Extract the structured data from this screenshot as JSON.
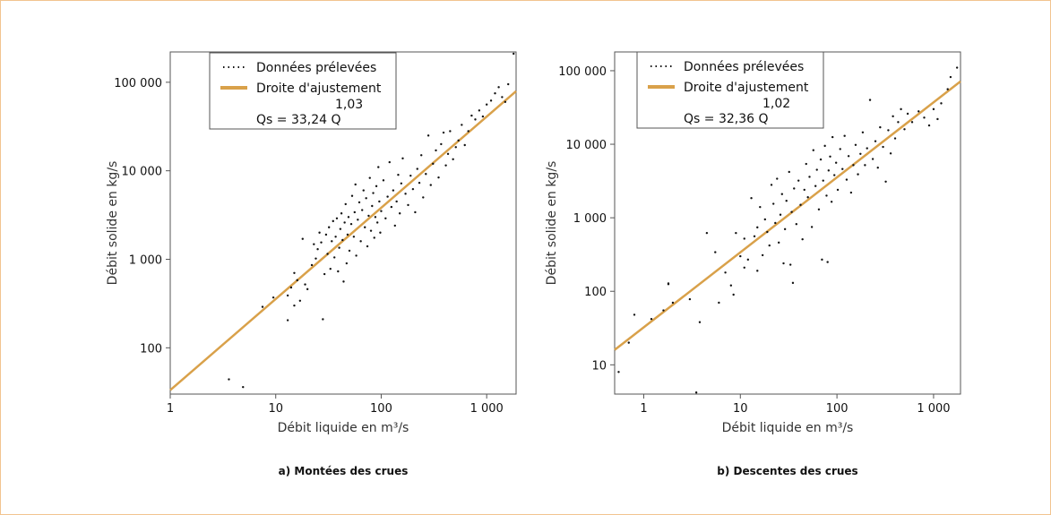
{
  "chart_data": [
    {
      "type": "scatter",
      "caption": "a) Montées des crues",
      "xlabel": "Débit liquide en m³/s",
      "ylabel": "Débit solide en kg/s",
      "xscale": "log",
      "yscale": "log",
      "xlim": [
        1,
        1900
      ],
      "ylim": [
        30,
        220000
      ],
      "xticks": [
        {
          "value": 1,
          "label": "1"
        },
        {
          "value": 10,
          "label": "10"
        },
        {
          "value": 100,
          "label": "100"
        },
        {
          "value": 1000,
          "label": "1 000"
        }
      ],
      "yticks": [
        {
          "value": 100,
          "label": "100"
        },
        {
          "value": 1000,
          "label": "1 000"
        },
        {
          "value": 10000,
          "label": "10 000"
        },
        {
          "value": 100000,
          "label": "100 000"
        }
      ],
      "legend": {
        "position": "top-center",
        "points_label": "Données prélevées",
        "fit_label": "Droite d'ajustement",
        "equation": "Qs = 33,24 Q",
        "exponent": "1,03"
      },
      "fit": {
        "coefficient": 33.24,
        "exponent": 1.03,
        "color": "#d9a14a"
      },
      "series": [
        {
          "name": "Données prélevées",
          "points": [
            [
              3.6,
              44
            ],
            [
              4.9,
              36
            ],
            [
              7.5,
              290
            ],
            [
              9.5,
              370
            ],
            [
              13,
              205
            ],
            [
              13,
              390
            ],
            [
              14,
              480
            ],
            [
              15,
              300
            ],
            [
              15,
              700
            ],
            [
              16,
              580
            ],
            [
              17,
              340
            ],
            [
              18,
              1700
            ],
            [
              19,
              520
            ],
            [
              20,
              460
            ],
            [
              22,
              860
            ],
            [
              23,
              1480
            ],
            [
              24,
              1020
            ],
            [
              25,
              1300
            ],
            [
              26,
              2000
            ],
            [
              27,
              1550
            ],
            [
              28,
              210
            ],
            [
              29,
              680
            ],
            [
              30,
              1900
            ],
            [
              31,
              1150
            ],
            [
              32,
              2300
            ],
            [
              33,
              780
            ],
            [
              34,
              1600
            ],
            [
              35,
              2700
            ],
            [
              36,
              1050
            ],
            [
              37,
              1800
            ],
            [
              38,
              2900
            ],
            [
              39,
              730
            ],
            [
              40,
              1350
            ],
            [
              41,
              2200
            ],
            [
              42,
              3300
            ],
            [
              43,
              1650
            ],
            [
              44,
              560
            ],
            [
              45,
              2600
            ],
            [
              46,
              4200
            ],
            [
              47,
              900
            ],
            [
              48,
              1900
            ],
            [
              49,
              3000
            ],
            [
              50,
              1250
            ],
            [
              52,
              2500
            ],
            [
              53,
              5200
            ],
            [
              55,
              1800
            ],
            [
              56,
              3400
            ],
            [
              57,
              7000
            ],
            [
              58,
              1100
            ],
            [
              60,
              2800
            ],
            [
              62,
              4400
            ],
            [
              64,
              1600
            ],
            [
              66,
              3600
            ],
            [
              68,
              6000
            ],
            [
              70,
              2300
            ],
            [
              72,
              4900
            ],
            [
              74,
              1400
            ],
            [
              76,
              3100
            ],
            [
              78,
              8300
            ],
            [
              80,
              2100
            ],
            [
              82,
              4000
            ],
            [
              84,
              5600
            ],
            [
              86,
              1750
            ],
            [
              88,
              3000
            ],
            [
              90,
              6700
            ],
            [
              92,
              2600
            ],
            [
              94,
              11000
            ],
            [
              96,
              4500
            ],
            [
              98,
              2000
            ],
            [
              100,
              3500
            ],
            [
              105,
              7800
            ],
            [
              110,
              2900
            ],
            [
              115,
              5100
            ],
            [
              120,
              12500
            ],
            [
              125,
              3900
            ],
            [
              130,
              6000
            ],
            [
              135,
              2400
            ],
            [
              140,
              4500
            ],
            [
              145,
              9000
            ],
            [
              150,
              3300
            ],
            [
              155,
              7200
            ],
            [
              160,
              13800
            ],
            [
              170,
              5500
            ],
            [
              180,
              4100
            ],
            [
              190,
              8800
            ],
            [
              200,
              6200
            ],
            [
              210,
              3400
            ],
            [
              220,
              10500
            ],
            [
              230,
              7300
            ],
            [
              240,
              15000
            ],
            [
              250,
              5000
            ],
            [
              265,
              9200
            ],
            [
              280,
              25000
            ],
            [
              295,
              6900
            ],
            [
              310,
              12000
            ],
            [
              330,
              17000
            ],
            [
              350,
              8400
            ],
            [
              370,
              20000
            ],
            [
              390,
              27000
            ],
            [
              410,
              11500
            ],
            [
              430,
              15500
            ],
            [
              450,
              28000
            ],
            [
              480,
              13500
            ],
            [
              510,
              18500
            ],
            [
              540,
              22000
            ],
            [
              580,
              33000
            ],
            [
              620,
              19500
            ],
            [
              670,
              28000
            ],
            [
              720,
              42000
            ],
            [
              780,
              38000
            ],
            [
              850,
              48000
            ],
            [
              920,
              41000
            ],
            [
              1000,
              56000
            ],
            [
              1100,
              62000
            ],
            [
              1200,
              75000
            ],
            [
              1300,
              88000
            ],
            [
              1400,
              68000
            ],
            [
              1500,
              60000
            ],
            [
              1600,
              95000
            ],
            [
              1800,
              210000
            ]
          ]
        }
      ]
    },
    {
      "type": "scatter",
      "caption": "b) Descentes des crues",
      "xlabel": "Débit liquide en m³/s",
      "ylabel": "Débit solide en kg/s",
      "xscale": "log",
      "yscale": "log",
      "xlim": [
        0.5,
        1900
      ],
      "ylim": [
        4,
        180000
      ],
      "xticks": [
        {
          "value": 1,
          "label": "1"
        },
        {
          "value": 10,
          "label": "10"
        },
        {
          "value": 100,
          "label": "100"
        },
        {
          "value": 1000,
          "label": "1 000"
        }
      ],
      "yticks": [
        {
          "value": 10,
          "label": "10"
        },
        {
          "value": 100,
          "label": "100"
        },
        {
          "value": 1000,
          "label": "1 000"
        },
        {
          "value": 10000,
          "label": "10 000"
        },
        {
          "value": 100000,
          "label": "100 000"
        }
      ],
      "legend": {
        "position": "top-center",
        "points_label": "Données prélevées",
        "fit_label": "Droite d'ajustement",
        "equation": "Qs = 32,36 Q",
        "exponent": "1,02"
      },
      "fit": {
        "coefficient": 32.36,
        "exponent": 1.02,
        "color": "#d9a14a"
      },
      "series": [
        {
          "name": "Données prélevées",
          "points": [
            [
              0.55,
              8
            ],
            [
              0.7,
              20
            ],
            [
              0.8,
              48
            ],
            [
              1.2,
              42
            ],
            [
              1.6,
              55
            ],
            [
              1.8,
              128
            ],
            [
              1.8,
              125
            ],
            [
              2.0,
              70
            ],
            [
              3.0,
              78
            ],
            [
              3.5,
              4.2
            ],
            [
              3.8,
              38
            ],
            [
              4.5,
              620
            ],
            [
              5.5,
              340
            ],
            [
              6.0,
              70
            ],
            [
              7.0,
              180
            ],
            [
              8.0,
              120
            ],
            [
              8.5,
              90
            ],
            [
              9.0,
              620
            ],
            [
              10,
              300
            ],
            [
              11,
              210
            ],
            [
              11,
              520
            ],
            [
              12,
              270
            ],
            [
              13,
              1850
            ],
            [
              14,
              560
            ],
            [
              15,
              740
            ],
            [
              15,
              190
            ],
            [
              16,
              1400
            ],
            [
              17,
              310
            ],
            [
              18,
              950
            ],
            [
              19,
              640
            ],
            [
              20,
              420
            ],
            [
              21,
              2800
            ],
            [
              22,
              1550
            ],
            [
              23,
              850
            ],
            [
              24,
              3400
            ],
            [
              25,
              460
            ],
            [
              26,
              1100
            ],
            [
              27,
              2100
            ],
            [
              28,
              240
            ],
            [
              29,
              700
            ],
            [
              30,
              1700
            ],
            [
              32,
              4200
            ],
            [
              33,
              230
            ],
            [
              34,
              1200
            ],
            [
              35,
              130
            ],
            [
              36,
              2500
            ],
            [
              38,
              820
            ],
            [
              40,
              3200
            ],
            [
              42,
              1500
            ],
            [
              44,
              510
            ],
            [
              46,
              2400
            ],
            [
              48,
              5400
            ],
            [
              50,
              1900
            ],
            [
              52,
              3600
            ],
            [
              55,
              750
            ],
            [
              57,
              8300
            ],
            [
              60,
              2700
            ],
            [
              62,
              4500
            ],
            [
              65,
              1300
            ],
            [
              68,
              6200
            ],
            [
              70,
              270
            ],
            [
              72,
              3200
            ],
            [
              75,
              9500
            ],
            [
              78,
              2000
            ],
            [
              80,
              250
            ],
            [
              82,
              4400
            ],
            [
              85,
              6800
            ],
            [
              88,
              1650
            ],
            [
              90,
              12500
            ],
            [
              94,
              3800
            ],
            [
              98,
              5600
            ],
            [
              102,
              2400
            ],
            [
              108,
              8600
            ],
            [
              114,
              4600
            ],
            [
              120,
              13000
            ],
            [
              126,
              3300
            ],
            [
              132,
              6900
            ],
            [
              140,
              2200
            ],
            [
              148,
              5200
            ],
            [
              156,
              9800
            ],
            [
              165,
              3900
            ],
            [
              175,
              7400
            ],
            [
              185,
              14500
            ],
            [
              195,
              5200
            ],
            [
              205,
              8800
            ],
            [
              220,
              40000
            ],
            [
              235,
              6300
            ],
            [
              250,
              11000
            ],
            [
              265,
              4800
            ],
            [
              280,
              17000
            ],
            [
              300,
              9200
            ],
            [
              320,
              3100
            ],
            [
              340,
              15500
            ],
            [
              360,
              7500
            ],
            [
              380,
              24000
            ],
            [
              400,
              12000
            ],
            [
              430,
              20000
            ],
            [
              460,
              30000
            ],
            [
              500,
              16000
            ],
            [
              540,
              26000
            ],
            [
              600,
              20000
            ],
            [
              700,
              28000
            ],
            [
              800,
              23000
            ],
            [
              900,
              18000
            ],
            [
              1000,
              30000
            ],
            [
              1100,
              22000
            ],
            [
              1200,
              36000
            ],
            [
              1400,
              56000
            ],
            [
              1500,
              82000
            ],
            [
              1750,
              110000
            ]
          ]
        }
      ]
    }
  ]
}
